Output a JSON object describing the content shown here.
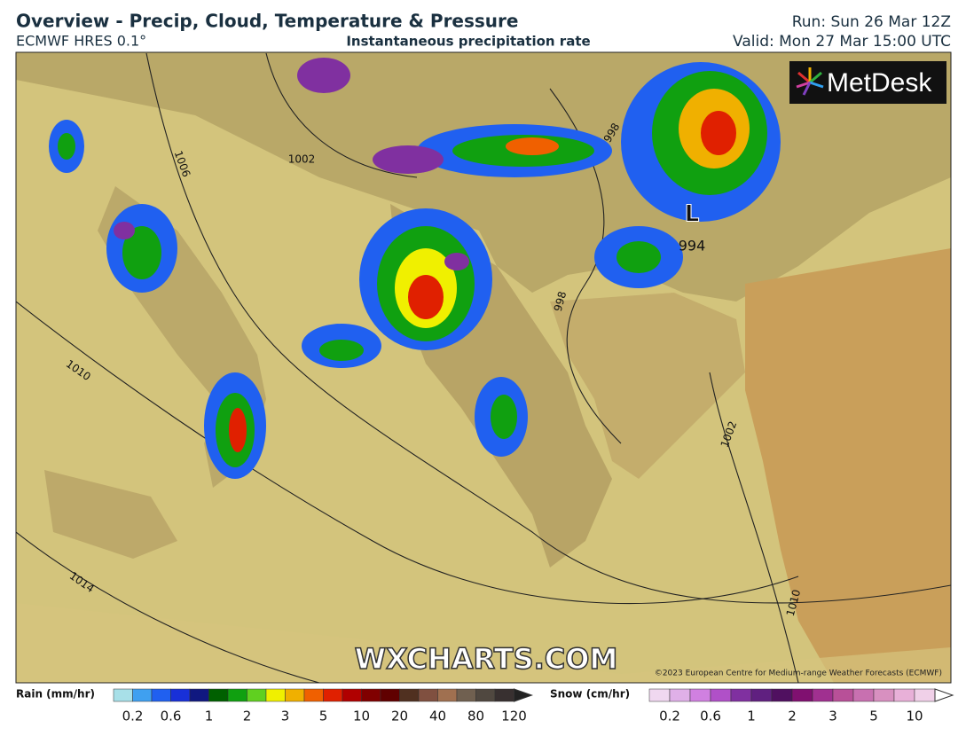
{
  "header": {
    "title": "Overview - Precip, Cloud, Temperature & Pressure",
    "model": "ECMWF HRES 0.1°",
    "field": "Instantaneous precipitation rate",
    "run": "Run: Sun 26 Mar 12Z",
    "valid": "Valid: Mon 27 Mar 15:00 UTC"
  },
  "map": {
    "logo": "MetDesk",
    "watermark": "WXCHARTS.COM",
    "copyright": "©2023 European Centre for Medium-range Weather Forecasts (ECMWF)",
    "low_label": "L",
    "isobar_labels": [
      "1006",
      "1002",
      "998",
      "998",
      "994",
      "1010",
      "1002",
      "1014",
      "1010"
    ]
  },
  "legend": {
    "rain": {
      "title": "Rain (mm/hr)",
      "ticks": [
        "0.2",
        "0.6",
        "1",
        "2",
        "3",
        "5",
        "10",
        "20",
        "40",
        "80",
        "120"
      ],
      "colors": [
        "#a8e0e8",
        "#3fa0f0",
        "#2060f0",
        "#1830d8",
        "#101880",
        "#006000",
        "#10a010",
        "#60d020",
        "#f0f000",
        "#f0b000",
        "#f06000",
        "#e02000",
        "#b00000",
        "#800000",
        "#600000",
        "#503020",
        "#805040",
        "#a07050",
        "#706050",
        "#504840",
        "#383030"
      ]
    },
    "snow": {
      "title": "Snow (cm/hr)",
      "ticks": [
        "0.2",
        "0.6",
        "1",
        "2",
        "3",
        "5",
        "10"
      ],
      "colors": [
        "#f0d8f0",
        "#e0b0e8",
        "#d080e0",
        "#b050c8",
        "#8030a0",
        "#602080",
        "#501060",
        "#801070",
        "#a03090",
        "#b85098",
        "#c870b0",
        "#d890c0",
        "#e8b0d8",
        "#f0d0e8"
      ]
    }
  }
}
